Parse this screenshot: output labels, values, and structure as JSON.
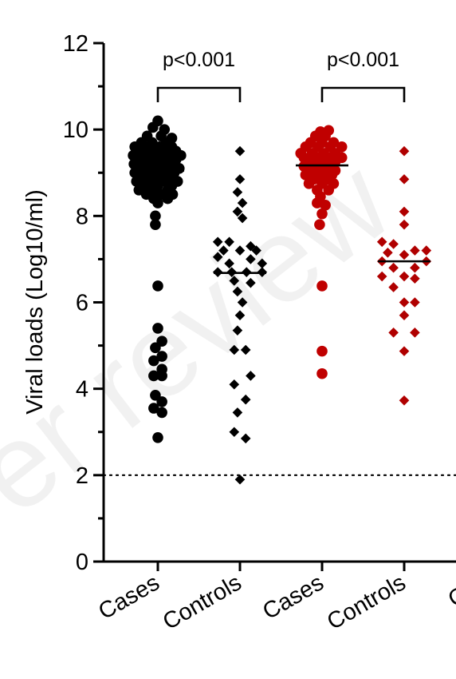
{
  "watermark": "er review",
  "chart_data": {
    "type": "scatter",
    "ylabel": "Viral loads (Log10/ml)",
    "ylim": [
      0,
      12
    ],
    "yticks": [
      0,
      2,
      4,
      6,
      8,
      10,
      12
    ],
    "categories": [
      "Cases",
      "Controls",
      "Cases",
      "Controls",
      "Cas"
    ],
    "reference_line": {
      "y": 2,
      "style": "dotted"
    },
    "comparisons": [
      {
        "from": 0,
        "to": 1,
        "label": "p<0.001"
      },
      {
        "from": 2,
        "to": 3,
        "label": "p<0.001"
      }
    ],
    "series": [
      {
        "category_index": 0,
        "marker": "circle",
        "color": "#000000",
        "median": 9.05,
        "points": [
          [
            0.0,
            10.2
          ],
          [
            -0.06,
            10.05
          ],
          [
            0.08,
            10.0
          ],
          [
            -0.13,
            9.85
          ],
          [
            0.04,
            9.85
          ],
          [
            0.17,
            9.8
          ],
          [
            -0.2,
            9.7
          ],
          [
            -0.07,
            9.7
          ],
          [
            0.1,
            9.7
          ],
          [
            -0.28,
            9.6
          ],
          [
            -0.15,
            9.6
          ],
          [
            0.02,
            9.6
          ],
          [
            0.17,
            9.6
          ],
          [
            -0.24,
            9.5
          ],
          [
            -0.09,
            9.5
          ],
          [
            0.07,
            9.5
          ],
          [
            0.22,
            9.5
          ],
          [
            -0.3,
            9.4
          ],
          [
            -0.16,
            9.4
          ],
          [
            0.0,
            9.4
          ],
          [
            0.14,
            9.4
          ],
          [
            0.28,
            9.4
          ],
          [
            -0.24,
            9.3
          ],
          [
            -0.08,
            9.3
          ],
          [
            0.08,
            9.3
          ],
          [
            0.22,
            9.3
          ],
          [
            -0.29,
            9.2
          ],
          [
            -0.14,
            9.2
          ],
          [
            0.02,
            9.2
          ],
          [
            0.16,
            9.2
          ],
          [
            -0.22,
            9.1
          ],
          [
            -0.06,
            9.1
          ],
          [
            0.11,
            9.1
          ],
          [
            0.26,
            9.1
          ],
          [
            -0.28,
            9.0
          ],
          [
            -0.12,
            9.0
          ],
          [
            0.05,
            9.0
          ],
          [
            0.2,
            9.0
          ],
          [
            -0.2,
            8.9
          ],
          [
            -0.03,
            8.9
          ],
          [
            0.14,
            8.9
          ],
          [
            -0.26,
            8.8
          ],
          [
            -0.1,
            8.8
          ],
          [
            0.08,
            8.8
          ],
          [
            0.24,
            8.8
          ],
          [
            -0.17,
            8.7
          ],
          [
            0.0,
            8.7
          ],
          [
            0.17,
            8.7
          ],
          [
            -0.23,
            8.6
          ],
          [
            -0.06,
            8.6
          ],
          [
            0.12,
            8.6
          ],
          [
            -0.14,
            8.5
          ],
          [
            0.05,
            8.5
          ],
          [
            0.18,
            8.5
          ],
          [
            -0.05,
            8.4
          ],
          [
            0.12,
            8.4
          ],
          [
            0.0,
            8.3
          ],
          [
            -0.03,
            8.0
          ],
          [
            -0.03,
            7.8
          ],
          [
            0.0,
            6.38
          ],
          [
            0.0,
            5.4
          ],
          [
            0.05,
            5.1
          ],
          [
            -0.03,
            4.95
          ],
          [
            0.05,
            4.75
          ],
          [
            -0.05,
            4.65
          ],
          [
            0.05,
            4.45
          ],
          [
            -0.05,
            4.3
          ],
          [
            0.05,
            4.3
          ],
          [
            -0.03,
            3.85
          ],
          [
            0.05,
            3.7
          ],
          [
            -0.05,
            3.55
          ],
          [
            0.05,
            3.45
          ],
          [
            0.0,
            2.87
          ]
        ]
      },
      {
        "category_index": 1,
        "marker": "diamond",
        "color": "#000000",
        "median": 6.68,
        "points": [
          [
            0.0,
            9.5
          ],
          [
            0.0,
            8.85
          ],
          [
            -0.03,
            8.55
          ],
          [
            0.03,
            8.3
          ],
          [
            -0.03,
            8.1
          ],
          [
            0.03,
            7.95
          ],
          [
            -0.27,
            7.4
          ],
          [
            -0.13,
            7.4
          ],
          [
            0.13,
            7.3
          ],
          [
            -0.2,
            7.2
          ],
          [
            0.0,
            7.2
          ],
          [
            0.2,
            7.2
          ],
          [
            -0.27,
            7.05
          ],
          [
            0.13,
            7.0
          ],
          [
            -0.13,
            6.9
          ],
          [
            0.27,
            6.9
          ],
          [
            -0.27,
            6.7
          ],
          [
            -0.1,
            6.7
          ],
          [
            0.08,
            6.7
          ],
          [
            0.27,
            6.7
          ],
          [
            -0.07,
            6.5
          ],
          [
            0.13,
            6.45
          ],
          [
            -0.03,
            6.25
          ],
          [
            0.03,
            6.0
          ],
          [
            0.0,
            5.7
          ],
          [
            -0.03,
            5.35
          ],
          [
            -0.07,
            4.9
          ],
          [
            0.07,
            4.9
          ],
          [
            0.13,
            4.3
          ],
          [
            -0.07,
            4.1
          ],
          [
            0.07,
            3.75
          ],
          [
            -0.03,
            3.45
          ],
          [
            -0.07,
            3.0
          ],
          [
            0.07,
            2.85
          ],
          [
            0.0,
            1.9
          ]
        ]
      },
      {
        "category_index": 2,
        "marker": "circle",
        "color": "#c00000",
        "median": 9.17,
        "points": [
          [
            -0.02,
            9.95
          ],
          [
            0.08,
            9.98
          ],
          [
            -0.08,
            9.85
          ],
          [
            0.04,
            9.85
          ],
          [
            -0.14,
            9.7
          ],
          [
            0.0,
            9.7
          ],
          [
            0.14,
            9.7
          ],
          [
            -0.2,
            9.6
          ],
          [
            -0.05,
            9.6
          ],
          [
            0.1,
            9.6
          ],
          [
            0.24,
            9.6
          ],
          [
            -0.26,
            9.45
          ],
          [
            -0.12,
            9.45
          ],
          [
            0.02,
            9.45
          ],
          [
            0.16,
            9.45
          ],
          [
            -0.22,
            9.35
          ],
          [
            -0.06,
            9.35
          ],
          [
            0.1,
            9.35
          ],
          [
            0.24,
            9.35
          ],
          [
            -0.16,
            9.25
          ],
          [
            0.0,
            9.25
          ],
          [
            0.16,
            9.25
          ],
          [
            -0.22,
            9.15
          ],
          [
            -0.06,
            9.15
          ],
          [
            0.1,
            9.15
          ],
          [
            -0.14,
            9.05
          ],
          [
            0.02,
            9.05
          ],
          [
            0.16,
            9.05
          ],
          [
            -0.2,
            8.95
          ],
          [
            -0.04,
            8.95
          ],
          [
            0.12,
            8.95
          ],
          [
            -0.1,
            8.85
          ],
          [
            0.06,
            8.85
          ],
          [
            -0.16,
            8.75
          ],
          [
            0.0,
            8.75
          ],
          [
            0.14,
            8.75
          ],
          [
            -0.06,
            8.6
          ],
          [
            0.08,
            8.6
          ],
          [
            -0.02,
            8.45
          ],
          [
            -0.06,
            8.3
          ],
          [
            0.04,
            8.25
          ],
          [
            0.0,
            8.05
          ],
          [
            -0.03,
            7.8
          ],
          [
            0.0,
            6.38
          ],
          [
            0.0,
            4.87
          ],
          [
            0.0,
            4.35
          ]
        ]
      },
      {
        "category_index": 3,
        "marker": "diamond",
        "color": "#b00000",
        "median": 6.95,
        "points": [
          [
            0.0,
            9.5
          ],
          [
            0.0,
            8.85
          ],
          [
            0.0,
            8.1
          ],
          [
            0.0,
            7.8
          ],
          [
            -0.27,
            7.4
          ],
          [
            -0.13,
            7.35
          ],
          [
            0.13,
            7.2
          ],
          [
            0.27,
            7.2
          ],
          [
            -0.2,
            7.15
          ],
          [
            0.0,
            7.1
          ],
          [
            -0.27,
            6.95
          ],
          [
            0.27,
            6.95
          ],
          [
            -0.13,
            6.8
          ],
          [
            0.13,
            6.8
          ],
          [
            -0.27,
            6.6
          ],
          [
            0.0,
            6.6
          ],
          [
            0.13,
            6.55
          ],
          [
            -0.13,
            6.35
          ],
          [
            0.0,
            6.0
          ],
          [
            0.13,
            6.0
          ],
          [
            0.0,
            5.7
          ],
          [
            -0.13,
            5.3
          ],
          [
            0.13,
            5.3
          ],
          [
            0.0,
            4.87
          ],
          [
            0.0,
            3.73
          ]
        ]
      }
    ]
  }
}
